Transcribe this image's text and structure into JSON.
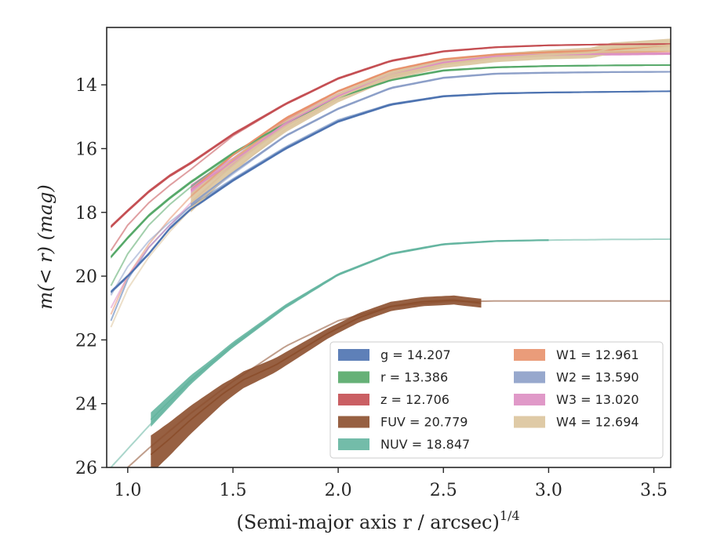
{
  "chart_data": {
    "type": "line",
    "xlabel": "(Semi-major axis r / arcsec)",
    "xlabel_sup": "1/4",
    "ylabel": "m(< r) (mag)",
    "xlim": [
      0.9,
      3.58
    ],
    "ylim": [
      26.0,
      12.2
    ],
    "y_inverted": true,
    "xticks": [
      1.0,
      1.5,
      2.0,
      2.5,
      3.0,
      3.5
    ],
    "xtick_labels": [
      "1.0",
      "1.5",
      "2.0",
      "2.5",
      "3.0",
      "3.5"
    ],
    "yticks": [
      14,
      16,
      18,
      20,
      22,
      24,
      26
    ],
    "ytick_labels": [
      "14",
      "16",
      "18",
      "20",
      "22",
      "24",
      "26"
    ],
    "grid": false,
    "legend_position": "lower-right",
    "legend_columns": 2,
    "series": [
      {
        "name": "g",
        "value": "14.207",
        "color": "#4c72b0",
        "fit": [
          [
            0.92,
            21.4
          ],
          [
            1.0,
            20.1
          ],
          [
            1.1,
            19.1
          ],
          [
            1.2,
            18.4
          ],
          [
            1.3,
            17.8
          ],
          [
            1.5,
            16.95
          ],
          [
            1.75,
            15.95
          ],
          [
            2.0,
            15.1
          ],
          [
            2.25,
            14.6
          ],
          [
            2.5,
            14.35
          ],
          [
            2.75,
            14.27
          ],
          [
            3.0,
            14.24
          ],
          [
            3.3,
            14.22
          ],
          [
            3.58,
            14.2
          ]
        ],
        "data": [
          [
            0.92,
            20.5
          ],
          [
            1.0,
            20.0
          ],
          [
            1.1,
            19.3
          ],
          [
            1.2,
            18.5
          ],
          [
            1.3,
            17.9
          ],
          [
            1.5,
            17.0
          ],
          [
            1.75,
            16.0
          ],
          [
            2.0,
            15.15
          ],
          [
            2.25,
            14.62
          ],
          [
            2.5,
            14.36
          ],
          [
            2.75,
            14.27
          ],
          [
            3.0,
            14.24
          ],
          [
            3.3,
            14.22
          ],
          [
            3.58,
            14.2
          ]
        ],
        "width": [
          [
            0.92,
            0.1
          ],
          [
            3.58,
            0.04
          ]
        ]
      },
      {
        "name": "r",
        "value": "13.386",
        "color": "#55a868",
        "fit": [
          [
            0.92,
            20.3
          ],
          [
            1.0,
            19.3
          ],
          [
            1.1,
            18.4
          ],
          [
            1.2,
            17.75
          ],
          [
            1.3,
            17.2
          ],
          [
            1.5,
            16.2
          ],
          [
            1.75,
            15.2
          ],
          [
            2.0,
            14.4
          ],
          [
            2.25,
            13.85
          ],
          [
            2.5,
            13.55
          ],
          [
            2.75,
            13.45
          ],
          [
            3.0,
            13.41
          ],
          [
            3.3,
            13.39
          ],
          [
            3.58,
            13.38
          ]
        ],
        "data": [
          [
            0.92,
            19.4
          ],
          [
            1.0,
            18.8
          ],
          [
            1.1,
            18.1
          ],
          [
            1.2,
            17.55
          ],
          [
            1.3,
            17.05
          ],
          [
            1.5,
            16.15
          ],
          [
            1.75,
            15.2
          ],
          [
            2.0,
            14.4
          ],
          [
            2.25,
            13.85
          ],
          [
            2.5,
            13.55
          ],
          [
            2.75,
            13.45
          ],
          [
            3.0,
            13.41
          ],
          [
            3.3,
            13.39
          ],
          [
            3.58,
            13.38
          ]
        ],
        "width": [
          [
            0.92,
            0.1
          ],
          [
            3.58,
            0.04
          ]
        ]
      },
      {
        "name": "z",
        "value": "12.706",
        "color": "#c44e52",
        "fit": [
          [
            0.92,
            19.2
          ],
          [
            1.0,
            18.4
          ],
          [
            1.1,
            17.7
          ],
          [
            1.2,
            17.15
          ],
          [
            1.3,
            16.65
          ],
          [
            1.5,
            15.6
          ],
          [
            1.75,
            14.6
          ],
          [
            2.0,
            13.8
          ],
          [
            2.25,
            13.25
          ],
          [
            2.5,
            12.95
          ],
          [
            2.75,
            12.82
          ],
          [
            3.0,
            12.76
          ],
          [
            3.3,
            12.73
          ],
          [
            3.58,
            12.72
          ]
        ],
        "data": [
          [
            0.92,
            18.45
          ],
          [
            1.0,
            17.95
          ],
          [
            1.1,
            17.35
          ],
          [
            1.2,
            16.85
          ],
          [
            1.3,
            16.45
          ],
          [
            1.5,
            15.55
          ],
          [
            1.75,
            14.6
          ],
          [
            2.0,
            13.8
          ],
          [
            2.25,
            13.25
          ],
          [
            2.5,
            12.95
          ],
          [
            2.75,
            12.82
          ],
          [
            3.0,
            12.76
          ],
          [
            3.3,
            12.73
          ],
          [
            3.58,
            12.72
          ]
        ],
        "width": [
          [
            0.92,
            0.1
          ],
          [
            3.58,
            0.04
          ]
        ]
      },
      {
        "name": "FUV",
        "value": "20.779",
        "color": "#8c4f2d",
        "fit": [
          [
            1.0,
            26.0
          ],
          [
            1.1,
            25.4
          ],
          [
            1.3,
            24.3
          ],
          [
            1.5,
            23.3
          ],
          [
            1.75,
            22.2
          ],
          [
            2.0,
            21.4
          ],
          [
            2.25,
            20.95
          ],
          [
            2.5,
            20.8
          ],
          [
            2.75,
            20.78
          ],
          [
            3.0,
            20.78
          ],
          [
            3.3,
            20.78
          ],
          [
            3.58,
            20.78
          ]
        ],
        "data": [
          [
            1.11,
            25.6
          ],
          [
            1.2,
            25.1
          ],
          [
            1.3,
            24.5
          ],
          [
            1.45,
            23.7
          ],
          [
            1.55,
            23.25
          ],
          [
            1.7,
            22.8
          ],
          [
            1.85,
            22.2
          ],
          [
            1.95,
            21.8
          ],
          [
            2.1,
            21.3
          ],
          [
            2.25,
            20.95
          ],
          [
            2.4,
            20.8
          ],
          [
            2.55,
            20.75
          ],
          [
            2.68,
            20.85
          ]
        ],
        "width": [
          [
            1.11,
            1.2
          ],
          [
            1.5,
            0.55
          ],
          [
            2.0,
            0.3
          ],
          [
            2.68,
            0.28
          ]
        ]
      },
      {
        "name": "NUV",
        "value": "18.847",
        "color": "#64b5a0",
        "fit": [
          [
            0.92,
            26.0
          ],
          [
            1.1,
            24.7
          ],
          [
            1.3,
            23.3
          ],
          [
            1.5,
            22.2
          ],
          [
            1.75,
            20.95
          ],
          [
            2.0,
            19.95
          ],
          [
            2.25,
            19.3
          ],
          [
            2.5,
            19.0
          ],
          [
            2.75,
            18.9
          ],
          [
            3.0,
            18.87
          ],
          [
            3.3,
            18.85
          ],
          [
            3.58,
            18.84
          ]
        ],
        "data": [
          [
            1.11,
            24.5
          ],
          [
            1.3,
            23.25
          ],
          [
            1.5,
            22.15
          ],
          [
            1.75,
            20.95
          ],
          [
            2.0,
            19.95
          ],
          [
            2.25,
            19.3
          ],
          [
            2.5,
            19.0
          ],
          [
            2.75,
            18.9
          ],
          [
            3.0,
            18.87
          ]
        ],
        "width": [
          [
            1.11,
            0.45
          ],
          [
            1.4,
            0.2
          ],
          [
            2.0,
            0.08
          ],
          [
            3.0,
            0.05
          ]
        ]
      },
      {
        "name": "W1",
        "value": "12.961",
        "color": "#e8916b",
        "fit": [
          [
            0.92,
            21.2
          ],
          [
            1.0,
            20.0
          ],
          [
            1.1,
            19.0
          ],
          [
            1.2,
            18.2
          ],
          [
            1.3,
            17.5
          ],
          [
            1.5,
            16.35
          ],
          [
            1.75,
            15.1
          ],
          [
            2.0,
            14.2
          ],
          [
            2.25,
            13.55
          ],
          [
            2.5,
            13.2
          ],
          [
            2.75,
            13.05
          ],
          [
            3.0,
            12.99
          ],
          [
            3.3,
            12.97
          ],
          [
            3.58,
            12.96
          ]
        ],
        "data": [
          [
            1.3,
            17.3
          ],
          [
            1.5,
            16.2
          ],
          [
            1.75,
            15.05
          ],
          [
            2.0,
            14.2
          ],
          [
            2.25,
            13.55
          ],
          [
            2.5,
            13.2
          ],
          [
            2.75,
            13.05
          ],
          [
            3.0,
            12.97
          ],
          [
            3.3,
            12.9
          ],
          [
            3.58,
            12.75
          ]
        ],
        "width": [
          [
            1.3,
            0.08
          ],
          [
            3.58,
            0.06
          ]
        ]
      },
      {
        "name": "W2",
        "value": "13.590",
        "color": "#8c9fc8",
        "fit": [
          [
            0.92,
            20.6
          ],
          [
            1.0,
            19.7
          ],
          [
            1.1,
            18.9
          ],
          [
            1.2,
            18.3
          ],
          [
            1.3,
            17.8
          ],
          [
            1.5,
            16.8
          ],
          [
            1.75,
            15.6
          ],
          [
            2.0,
            14.75
          ],
          [
            2.25,
            14.1
          ],
          [
            2.5,
            13.78
          ],
          [
            2.75,
            13.65
          ],
          [
            3.0,
            13.62
          ],
          [
            3.3,
            13.6
          ],
          [
            3.58,
            13.59
          ]
        ],
        "data": [
          [
            1.3,
            17.75
          ],
          [
            1.5,
            16.75
          ],
          [
            1.75,
            15.6
          ],
          [
            2.0,
            14.75
          ],
          [
            2.25,
            14.1
          ],
          [
            2.5,
            13.78
          ],
          [
            2.75,
            13.65
          ],
          [
            3.0,
            13.62
          ],
          [
            3.3,
            13.6
          ],
          [
            3.58,
            13.59
          ]
        ],
        "width": [
          [
            1.3,
            0.08
          ],
          [
            3.58,
            0.05
          ]
        ]
      },
      {
        "name": "W3",
        "value": "13.020",
        "color": "#dd8ec2",
        "fit": [
          [
            0.92,
            21.0
          ],
          [
            1.0,
            20.0
          ],
          [
            1.1,
            19.1
          ],
          [
            1.2,
            18.4
          ],
          [
            1.3,
            17.7
          ],
          [
            1.5,
            16.5
          ],
          [
            1.75,
            15.25
          ],
          [
            2.0,
            14.35
          ],
          [
            2.25,
            13.7
          ],
          [
            2.5,
            13.3
          ],
          [
            2.75,
            13.1
          ],
          [
            3.0,
            13.05
          ],
          [
            3.3,
            13.03
          ],
          [
            3.58,
            13.02
          ]
        ],
        "data": [
          [
            1.3,
            17.3
          ],
          [
            1.5,
            16.4
          ],
          [
            1.75,
            15.2
          ],
          [
            2.0,
            14.35
          ],
          [
            2.25,
            13.7
          ],
          [
            2.5,
            13.3
          ],
          [
            2.75,
            13.1
          ],
          [
            3.0,
            13.05
          ],
          [
            3.3,
            13.03
          ],
          [
            3.58,
            13.02
          ]
        ],
        "width": [
          [
            1.3,
            0.35
          ],
          [
            1.5,
            0.25
          ],
          [
            3.58,
            0.08
          ]
        ]
      },
      {
        "name": "W4",
        "value": "12.694",
        "color": "#dcc49c",
        "fit": [
          [
            0.92,
            21.6
          ],
          [
            1.0,
            20.4
          ],
          [
            1.1,
            19.4
          ],
          [
            1.2,
            18.6
          ],
          [
            1.3,
            17.9
          ],
          [
            1.5,
            16.7
          ],
          [
            1.75,
            15.4
          ],
          [
            2.0,
            14.45
          ],
          [
            2.25,
            13.75
          ],
          [
            2.5,
            13.35
          ],
          [
            2.75,
            13.15
          ],
          [
            3.0,
            13.05
          ],
          [
            3.3,
            12.95
          ],
          [
            3.58,
            12.8
          ]
        ],
        "data": [
          [
            1.3,
            17.7
          ],
          [
            1.45,
            16.8
          ],
          [
            1.6,
            16.0
          ],
          [
            1.75,
            15.3
          ],
          [
            2.0,
            14.4
          ],
          [
            2.25,
            13.7
          ],
          [
            2.5,
            13.35
          ],
          [
            2.75,
            13.15
          ],
          [
            3.0,
            13.05
          ],
          [
            3.2,
            13.0
          ],
          [
            3.3,
            12.85
          ],
          [
            3.45,
            12.8
          ],
          [
            3.58,
            12.75
          ]
        ],
        "width": [
          [
            1.3,
            0.6
          ],
          [
            1.5,
            0.45
          ],
          [
            2.0,
            0.3
          ],
          [
            2.5,
            0.25
          ],
          [
            3.0,
            0.3
          ],
          [
            3.58,
            0.4
          ]
        ]
      }
    ],
    "legend_items": [
      {
        "label": "g = 14.207",
        "color": "#4c72b0"
      },
      {
        "label": "r = 13.386",
        "color": "#55a868"
      },
      {
        "label": "z = 12.706",
        "color": "#c44e52"
      },
      {
        "label": "FUV = 20.779",
        "color": "#8c4f2d"
      },
      {
        "label": "NUV = 18.847",
        "color": "#64b5a0"
      },
      {
        "label": "W1 = 12.961",
        "color": "#e8916b"
      },
      {
        "label": "W2 = 13.590",
        "color": "#8c9fc8"
      },
      {
        "label": "W3 = 13.020",
        "color": "#dd8ec2"
      },
      {
        "label": "W4 = 12.694",
        "color": "#dcc49c"
      }
    ]
  }
}
